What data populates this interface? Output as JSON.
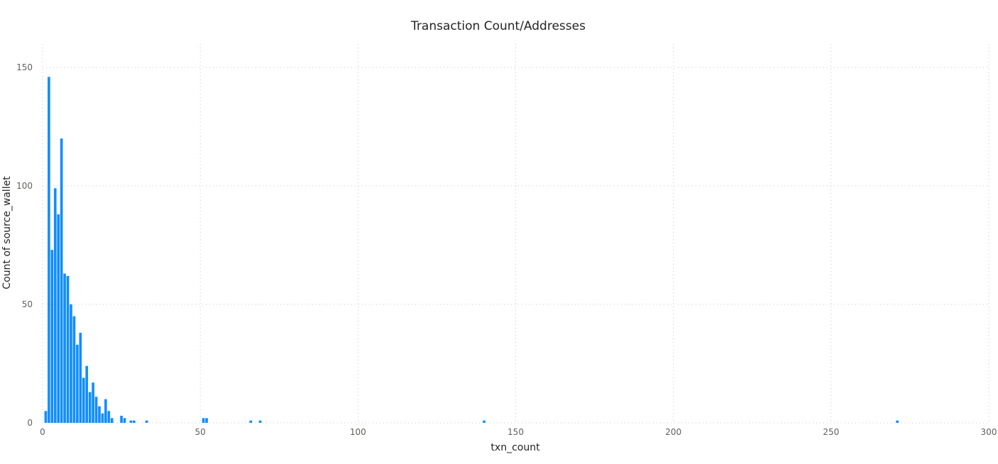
{
  "chart_data": {
    "type": "bar",
    "title": "Transaction Count/Addresses",
    "xlabel": "txn_count",
    "ylabel": "Count of source_wallet",
    "xlim": [
      0,
      300
    ],
    "ylim": [
      0,
      150
    ],
    "x_ticks": [
      0,
      50,
      100,
      150,
      200,
      250,
      300
    ],
    "y_ticks": [
      0,
      50,
      100,
      150
    ],
    "grid": true,
    "bar_color": "#118dff",
    "series": [
      {
        "x": [
          1,
          2,
          3,
          4,
          5,
          6,
          7,
          8,
          9,
          10,
          11,
          12,
          13,
          14,
          15,
          16,
          17,
          18,
          19,
          20,
          21,
          22,
          25,
          26,
          28,
          29,
          33,
          51,
          52,
          66,
          69,
          140,
          271
        ],
        "values": [
          5,
          146,
          73,
          99,
          88,
          120,
          63,
          62,
          50,
          45,
          33,
          38,
          19,
          24,
          13,
          17,
          11,
          7,
          4,
          10,
          5,
          2,
          3,
          2,
          1,
          1,
          1,
          2,
          2,
          1,
          1,
          1,
          1
        ]
      }
    ]
  }
}
